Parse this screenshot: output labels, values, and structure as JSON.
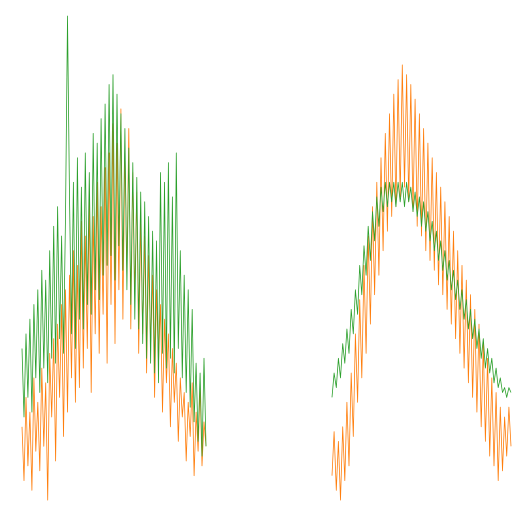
{
  "chart_data": {
    "type": "line",
    "title": "",
    "xlabel": "",
    "ylabel": "",
    "axes_visible": false,
    "grid": false,
    "legend": "none",
    "panels": [
      {
        "id": "left",
        "series": [
          {
            "color": "#ff7f0e",
            "values": [
              0.16,
              0.05,
              0.22,
              0.08,
              0.19,
              0.03,
              0.26,
              0.11,
              0.21,
              0.07,
              0.28,
              0.12,
              0.25,
              0.01,
              0.31,
              0.18,
              0.34,
              0.09,
              0.37,
              0.22,
              0.41,
              0.14,
              0.44,
              0.19,
              0.47,
              0.26,
              0.52,
              0.21,
              0.49,
              0.24,
              0.58,
              0.28,
              0.55,
              0.32,
              0.62,
              0.23,
              0.59,
              0.35,
              0.66,
              0.31,
              0.61,
              0.39,
              0.69,
              0.29,
              0.72,
              0.41,
              0.78,
              0.33,
              0.74,
              0.44,
              0.81,
              0.38,
              0.73,
              0.47,
              0.77,
              0.36,
              0.68,
              0.43,
              0.64,
              0.31,
              0.58,
              0.35,
              0.55,
              0.27,
              0.51,
              0.33,
              0.47,
              0.22,
              0.44,
              0.29,
              0.41,
              0.19,
              0.38,
              0.25,
              0.35,
              0.16,
              0.32,
              0.21,
              0.29,
              0.13,
              0.26,
              0.18,
              0.23,
              0.09,
              0.21,
              0.14,
              0.25,
              0.06,
              0.19,
              0.11,
              0.24,
              0.08,
              0.17,
              0.12
            ]
          },
          {
            "color": "#2ca02c",
            "values": [
              0.32,
              0.18,
              0.35,
              0.22,
              0.38,
              0.19,
              0.41,
              0.26,
              0.44,
              0.23,
              0.48,
              0.28,
              0.46,
              0.25,
              0.52,
              0.3,
              0.57,
              0.29,
              0.61,
              0.34,
              0.55,
              0.31,
              0.59,
              1.0,
              0.63,
              0.35,
              0.66,
              0.32,
              0.71,
              0.38,
              0.65,
              0.36,
              0.72,
              0.41,
              0.68,
              0.39,
              0.76,
              0.44,
              0.74,
              0.42,
              0.79,
              0.47,
              0.82,
              0.49,
              0.86,
              0.51,
              0.88,
              0.46,
              0.84,
              0.53,
              0.8,
              0.48,
              0.77,
              0.44,
              0.73,
              0.41,
              0.7,
              0.38,
              0.67,
              0.36,
              0.64,
              0.33,
              0.62,
              0.3,
              0.59,
              0.29,
              0.56,
              0.27,
              0.54,
              0.25,
              0.68,
              0.31,
              0.66,
              0.28,
              0.7,
              0.3,
              0.63,
              0.27,
              0.72,
              0.32,
              0.52,
              0.26,
              0.47,
              0.23,
              0.44,
              0.2,
              0.4,
              0.17,
              0.29,
              0.13,
              0.27,
              0.1,
              0.3,
              0.12
            ]
          }
        ]
      },
      {
        "id": "right",
        "series": [
          {
            "color": "#ff7f0e",
            "values": [
              0.06,
              0.15,
              0.03,
              0.13,
              0.01,
              0.16,
              0.05,
              0.21,
              0.08,
              0.27,
              0.14,
              0.35,
              0.21,
              0.42,
              0.26,
              0.49,
              0.31,
              0.55,
              0.37,
              0.61,
              0.43,
              0.66,
              0.47,
              0.71,
              0.52,
              0.76,
              0.56,
              0.8,
              0.59,
              0.84,
              0.61,
              0.87,
              0.63,
              0.9,
              0.65,
              0.88,
              0.62,
              0.86,
              0.6,
              0.83,
              0.57,
              0.8,
              0.55,
              0.77,
              0.52,
              0.74,
              0.5,
              0.71,
              0.48,
              0.68,
              0.45,
              0.65,
              0.43,
              0.62,
              0.4,
              0.59,
              0.37,
              0.56,
              0.34,
              0.52,
              0.31,
              0.49,
              0.28,
              0.46,
              0.25,
              0.43,
              0.22,
              0.4,
              0.19,
              0.37,
              0.16,
              0.33,
              0.13,
              0.3,
              0.1,
              0.26,
              0.08,
              0.23,
              0.05,
              0.2,
              0.07,
              0.18,
              0.1,
              0.2,
              0.12
            ]
          },
          {
            "color": "#2ca02c",
            "values": [
              0.22,
              0.27,
              0.24,
              0.3,
              0.26,
              0.33,
              0.29,
              0.36,
              0.31,
              0.4,
              0.35,
              0.44,
              0.39,
              0.49,
              0.43,
              0.53,
              0.47,
              0.57,
              0.5,
              0.6,
              0.54,
              0.63,
              0.57,
              0.65,
              0.6,
              0.66,
              0.61,
              0.66,
              0.62,
              0.66,
              0.61,
              0.66,
              0.62,
              0.66,
              0.61,
              0.66,
              0.62,
              0.65,
              0.6,
              0.64,
              0.59,
              0.63,
              0.57,
              0.62,
              0.56,
              0.6,
              0.54,
              0.58,
              0.52,
              0.56,
              0.5,
              0.54,
              0.48,
              0.52,
              0.46,
              0.5,
              0.44,
              0.48,
              0.42,
              0.46,
              0.4,
              0.44,
              0.38,
              0.42,
              0.36,
              0.4,
              0.34,
              0.38,
              0.32,
              0.36,
              0.3,
              0.34,
              0.28,
              0.32,
              0.27,
              0.3,
              0.25,
              0.28,
              0.24,
              0.26,
              0.23,
              0.24,
              0.22,
              0.24,
              0.23
            ]
          }
        ]
      }
    ]
  }
}
